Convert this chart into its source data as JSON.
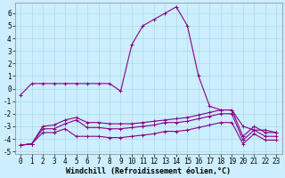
{
  "xlabel": "Windchill (Refroidissement éolien,°C)",
  "ylabel": "",
  "xlim": [
    -0.5,
    23.5
  ],
  "ylim": [
    -5.2,
    6.8
  ],
  "background_color": "#cceeff",
  "grid_color": "#aadddd",
  "line_color": "#880088",
  "series": {
    "line1": {
      "x": [
        0,
        1,
        2,
        3,
        4,
        5,
        6,
        7,
        8,
        9,
        10,
        11,
        12,
        13,
        14,
        15,
        16,
        17,
        18,
        19,
        20,
        21,
        22,
        23
      ],
      "y": [
        -0.5,
        0.4,
        0.4,
        0.4,
        0.4,
        0.4,
        0.4,
        0.4,
        0.4,
        -0.2,
        3.5,
        5.0,
        5.5,
        6.0,
        6.5,
        5.0,
        1.0,
        -1.4,
        -1.7,
        -1.7,
        -3.0,
        -3.3,
        -3.3,
        -3.5
      ]
    },
    "line2": {
      "x": [
        0,
        1,
        2,
        3,
        4,
        5,
        6,
        7,
        8,
        9,
        10,
        11,
        12,
        13,
        14,
        15,
        16,
        17,
        18,
        19,
        20,
        21,
        22,
        23
      ],
      "y": [
        -4.5,
        -4.4,
        -3.0,
        -2.9,
        -2.5,
        -2.3,
        -2.7,
        -2.7,
        -2.8,
        -2.8,
        -2.8,
        -2.7,
        -2.6,
        -2.5,
        -2.4,
        -2.3,
        -2.1,
        -1.9,
        -1.7,
        -1.7,
        -3.8,
        -3.0,
        -3.5,
        -3.5
      ]
    },
    "line3": {
      "x": [
        0,
        1,
        2,
        3,
        4,
        5,
        6,
        7,
        8,
        9,
        10,
        11,
        12,
        13,
        14,
        15,
        16,
        17,
        18,
        19,
        20,
        21,
        22,
        23
      ],
      "y": [
        -4.5,
        -4.4,
        -3.2,
        -3.2,
        -2.8,
        -2.5,
        -3.1,
        -3.1,
        -3.2,
        -3.2,
        -3.1,
        -3.0,
        -2.9,
        -2.7,
        -2.7,
        -2.6,
        -2.4,
        -2.2,
        -2.0,
        -2.0,
        -4.1,
        -3.3,
        -3.8,
        -3.8
      ]
    },
    "line4": {
      "x": [
        0,
        1,
        2,
        3,
        4,
        5,
        6,
        7,
        8,
        9,
        10,
        11,
        12,
        13,
        14,
        15,
        16,
        17,
        18,
        19,
        20,
        21,
        22,
        23
      ],
      "y": [
        -4.5,
        -4.4,
        -3.5,
        -3.5,
        -3.2,
        -3.8,
        -3.8,
        -3.8,
        -3.9,
        -3.9,
        -3.8,
        -3.7,
        -3.6,
        -3.4,
        -3.4,
        -3.3,
        -3.1,
        -2.9,
        -2.7,
        -2.7,
        -4.4,
        -3.6,
        -4.1,
        -4.1
      ]
    }
  },
  "yticks": [
    -5,
    -4,
    -3,
    -2,
    -1,
    0,
    1,
    2,
    3,
    4,
    5,
    6
  ],
  "xticks": [
    0,
    1,
    2,
    3,
    4,
    5,
    6,
    7,
    8,
    9,
    10,
    11,
    12,
    13,
    14,
    15,
    16,
    17,
    18,
    19,
    20,
    21,
    22,
    23
  ],
  "marker": "+",
  "marker_size": 3,
  "line_width": 0.8,
  "tick_fontsize": 5.5,
  "xlabel_fontsize": 6.0
}
